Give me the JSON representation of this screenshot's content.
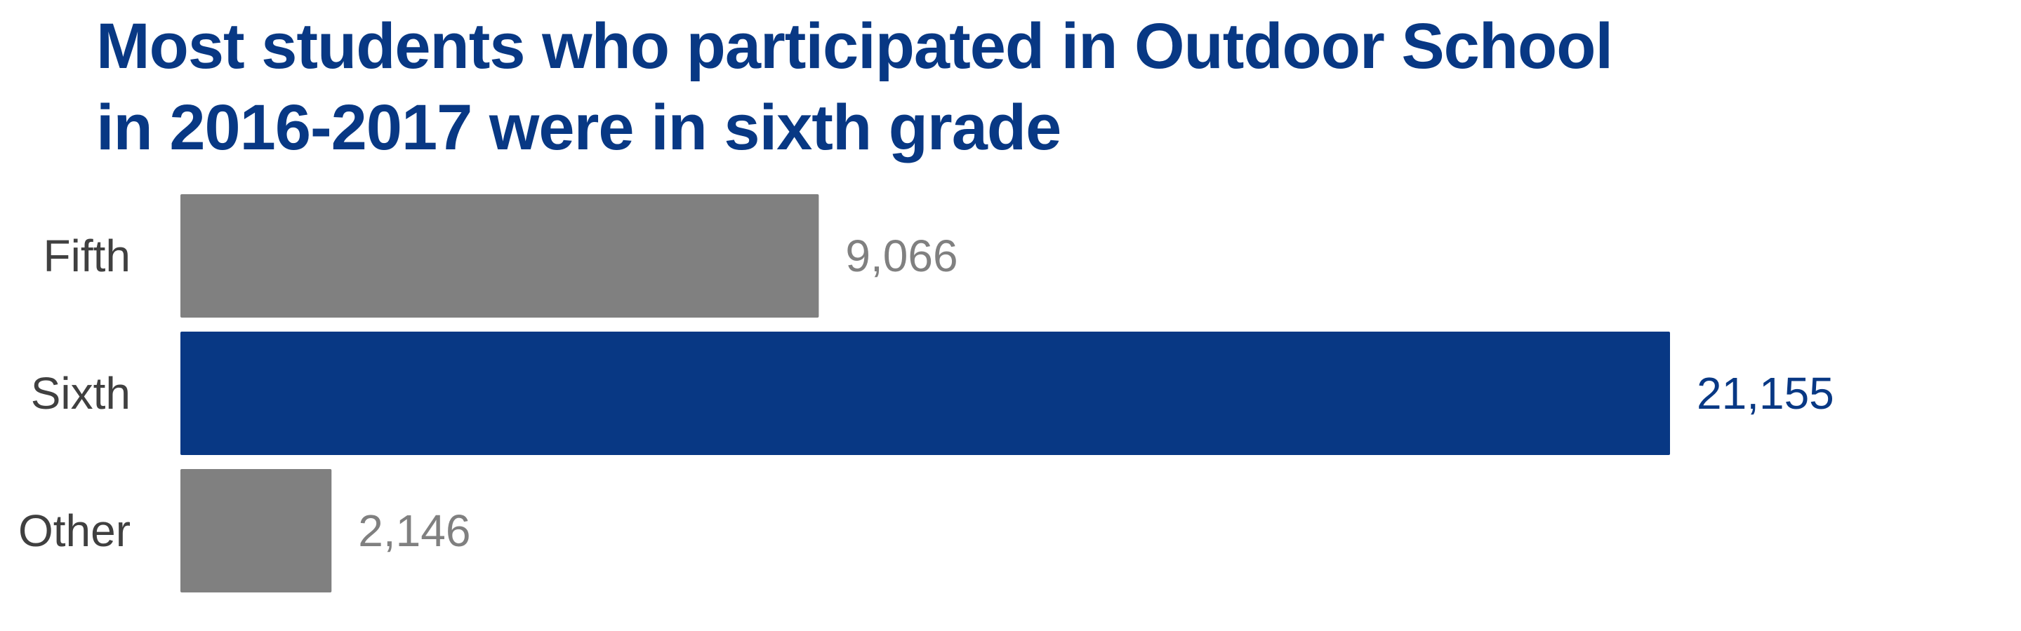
{
  "chart_data": {
    "type": "bar",
    "orientation": "horizontal",
    "title": "Most students who participated in Outdoor School in 2016-2017 were in sixth grade",
    "title_lines": [
      "Most students who participated in Outdoor School",
      "in 2016-2017 were in sixth grade"
    ],
    "categories": [
      "Fifth",
      "Sixth",
      "Other"
    ],
    "values": [
      9066,
      21155,
      2146
    ],
    "value_labels": [
      "9,066",
      "21,155",
      "2,146"
    ],
    "highlight": "Sixth",
    "xlabel": "",
    "ylabel": "",
    "xlim": [
      0,
      21155
    ],
    "grid": false,
    "legend": "none"
  },
  "colors": {
    "title": "#083884",
    "highlight_bar": "#083884",
    "default_bar": "#808080",
    "highlight_label": "#083884",
    "default_label": "#808080",
    "category_label": "#404040"
  }
}
